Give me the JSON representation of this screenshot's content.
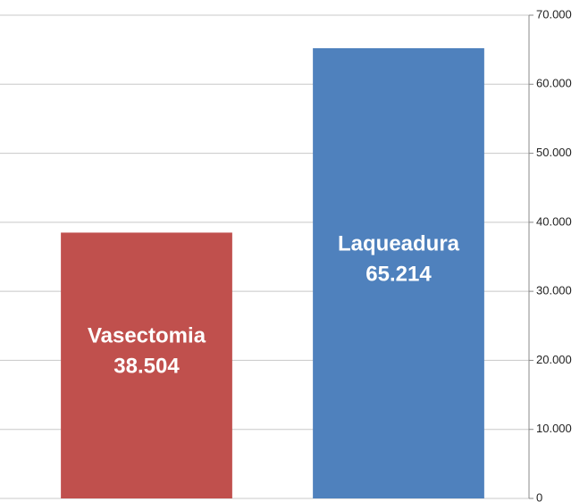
{
  "chart_data": {
    "type": "bar",
    "categories": [
      "Vasectomia",
      "Laqueadura"
    ],
    "values": [
      38504,
      65214
    ],
    "value_labels": [
      "38.504",
      "65.214"
    ],
    "colors": [
      "#c0504d",
      "#4f81bd"
    ],
    "ylim": [
      0,
      70000
    ],
    "yticks": [
      0,
      {
        "value": 10000,
        "label": "10.000"
      },
      {
        "value": 20000,
        "label": "20.000"
      },
      {
        "value": 30000,
        "label": "30.000"
      },
      {
        "value": 40000,
        "label": "40.000"
      },
      {
        "value": 50000,
        "label": "50.000"
      },
      {
        "value": 60000,
        "label": "60.000"
      },
      {
        "value": 70000,
        "label": "70.000"
      }
    ],
    "grid": true
  }
}
